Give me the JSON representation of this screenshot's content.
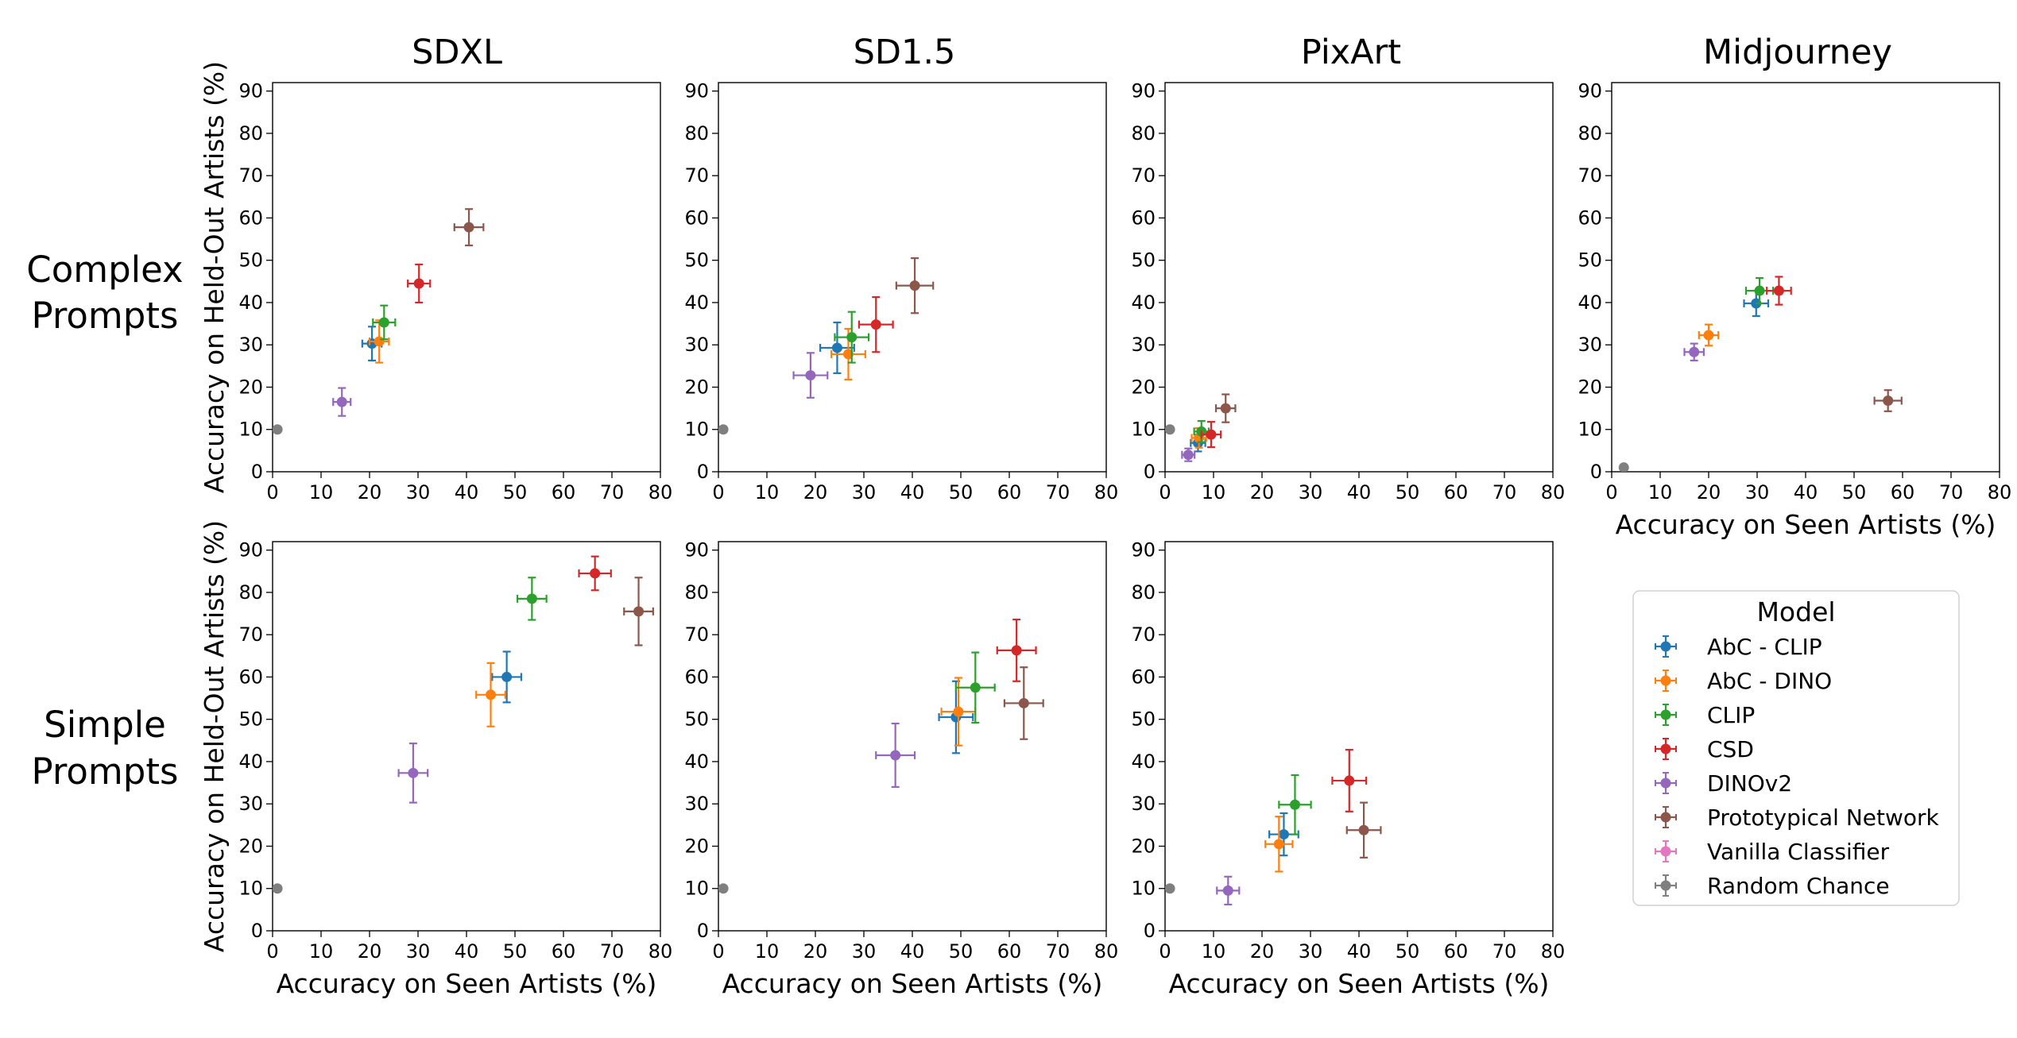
{
  "figure": {
    "column_titles": [
      "SDXL",
      "SD1.5",
      "PixArt",
      "Midjourney"
    ],
    "row_labels": [
      [
        "Complex",
        "Prompts"
      ],
      [
        "Simple",
        "Prompts"
      ]
    ]
  },
  "legend": {
    "title": "Model",
    "placement": "lower-right",
    "entries": [
      {
        "name": "AbC - CLIP",
        "color": "#1f77b4"
      },
      {
        "name": "AbC - DINO",
        "color": "#ff7f0e"
      },
      {
        "name": "CLIP",
        "color": "#2ca02c"
      },
      {
        "name": "CSD",
        "color": "#d62728"
      },
      {
        "name": "DINOv2",
        "color": "#9467bd"
      },
      {
        "name": "Prototypical Network",
        "color": "#8c564b"
      },
      {
        "name": "Vanilla Classifier",
        "color": "#e377c2"
      },
      {
        "name": "Random Chance",
        "color": "#7f7f7f"
      }
    ]
  },
  "chart_data": [
    {
      "type": "scatter",
      "row": 0,
      "col": 0,
      "title": "SDXL",
      "xlabel": "",
      "ylabel": "Accuracy on Held-Out Artists (%)",
      "xlim": [
        0,
        80
      ],
      "ylim": [
        0,
        92
      ],
      "xticks": [
        "0",
        "10",
        "20",
        "30",
        "40",
        "50",
        "60",
        "70",
        "80"
      ],
      "yticks": [
        "0",
        "10",
        "20",
        "30",
        "40",
        "50",
        "60",
        "70",
        "80",
        "90"
      ],
      "series": [
        {
          "name": "AbC - CLIP",
          "x": 20.5,
          "y": 30.3,
          "xerr": 2.0,
          "yerr": 4.0
        },
        {
          "name": "AbC - DINO",
          "x": 22.0,
          "y": 30.8,
          "xerr": 2.0,
          "yerr": 5.0
        },
        {
          "name": "CLIP",
          "x": 23.0,
          "y": 35.3,
          "xerr": 2.3,
          "yerr": 4.0
        },
        {
          "name": "CSD",
          "x": 30.2,
          "y": 44.5,
          "xerr": 2.3,
          "yerr": 4.5
        },
        {
          "name": "DINOv2",
          "x": 14.3,
          "y": 16.5,
          "xerr": 1.8,
          "yerr": 3.3
        },
        {
          "name": "Prototypical Network",
          "x": 40.5,
          "y": 57.8,
          "xerr": 3.0,
          "yerr": 4.3
        },
        {
          "name": "Random Chance",
          "x": 1.0,
          "y": 10.0,
          "xerr": 0,
          "yerr": 0
        }
      ]
    },
    {
      "type": "scatter",
      "row": 0,
      "col": 1,
      "title": "SD1.5",
      "xlabel": "",
      "ylabel": "",
      "xlim": [
        0,
        80
      ],
      "ylim": [
        0,
        92
      ],
      "xticks": [
        "0",
        "10",
        "20",
        "30",
        "40",
        "50",
        "60",
        "70",
        "80"
      ],
      "yticks": [
        "0",
        "10",
        "20",
        "30",
        "40",
        "50",
        "60",
        "70",
        "80",
        "90"
      ],
      "series": [
        {
          "name": "AbC - CLIP",
          "x": 24.5,
          "y": 29.3,
          "xerr": 3.5,
          "yerr": 6.0
        },
        {
          "name": "AbC - DINO",
          "x": 26.8,
          "y": 27.8,
          "xerr": 3.5,
          "yerr": 6.0
        },
        {
          "name": "CLIP",
          "x": 27.5,
          "y": 31.8,
          "xerr": 3.5,
          "yerr": 6.0
        },
        {
          "name": "CSD",
          "x": 32.5,
          "y": 34.8,
          "xerr": 3.5,
          "yerr": 6.5
        },
        {
          "name": "DINOv2",
          "x": 19.0,
          "y": 22.8,
          "xerr": 3.5,
          "yerr": 5.3
        },
        {
          "name": "Prototypical Network",
          "x": 40.5,
          "y": 44.0,
          "xerr": 3.8,
          "yerr": 6.5
        },
        {
          "name": "Random Chance",
          "x": 1.0,
          "y": 10.0,
          "xerr": 0,
          "yerr": 0
        }
      ]
    },
    {
      "type": "scatter",
      "row": 0,
      "col": 2,
      "title": "PixArt",
      "xlabel": "",
      "ylabel": "",
      "xlim": [
        0,
        80
      ],
      "ylim": [
        0,
        92
      ],
      "xticks": [
        "0",
        "10",
        "20",
        "30",
        "40",
        "50",
        "60",
        "70",
        "80"
      ],
      "yticks": [
        "0",
        "10",
        "20",
        "30",
        "40",
        "50",
        "60",
        "70",
        "80",
        "90"
      ],
      "series": [
        {
          "name": "AbC - CLIP",
          "x": 6.8,
          "y": 6.8,
          "xerr": 1.5,
          "yerr": 2.0
        },
        {
          "name": "AbC - DINO",
          "x": 7.0,
          "y": 8.0,
          "xerr": 1.5,
          "yerr": 2.3
        },
        {
          "name": "CLIP",
          "x": 7.5,
          "y": 9.5,
          "xerr": 1.5,
          "yerr": 2.5
        },
        {
          "name": "CSD",
          "x": 9.5,
          "y": 8.8,
          "xerr": 2.0,
          "yerr": 3.0
        },
        {
          "name": "DINOv2",
          "x": 4.8,
          "y": 4.0,
          "xerr": 1.3,
          "yerr": 1.5
        },
        {
          "name": "Prototypical Network",
          "x": 12.5,
          "y": 15.0,
          "xerr": 2.0,
          "yerr": 3.3
        },
        {
          "name": "Random Chance",
          "x": 1.0,
          "y": 10.0,
          "xerr": 0,
          "yerr": 0
        }
      ]
    },
    {
      "type": "scatter",
      "row": 0,
      "col": 3,
      "title": "Midjourney",
      "xlabel": "Accuracy on Seen Artists (%)",
      "ylabel": "",
      "xlim": [
        0,
        80
      ],
      "ylim": [
        0,
        92
      ],
      "xticks": [
        "0",
        "10",
        "20",
        "30",
        "40",
        "50",
        "60",
        "70",
        "80"
      ],
      "yticks": [
        "0",
        "10",
        "20",
        "30",
        "40",
        "50",
        "60",
        "70",
        "80",
        "90"
      ],
      "series": [
        {
          "name": "AbC - CLIP",
          "x": 29.8,
          "y": 39.8,
          "xerr": 2.5,
          "yerr": 3.0
        },
        {
          "name": "AbC - DINO",
          "x": 20.0,
          "y": 32.3,
          "xerr": 2.0,
          "yerr": 2.5
        },
        {
          "name": "CLIP",
          "x": 30.5,
          "y": 42.8,
          "xerr": 2.8,
          "yerr": 3.0
        },
        {
          "name": "CSD",
          "x": 34.5,
          "y": 42.8,
          "xerr": 2.5,
          "yerr": 3.3
        },
        {
          "name": "DINOv2",
          "x": 17.0,
          "y": 28.3,
          "xerr": 2.0,
          "yerr": 2.0
        },
        {
          "name": "Prototypical Network",
          "x": 57.0,
          "y": 16.8,
          "xerr": 2.8,
          "yerr": 2.5
        },
        {
          "name": "Random Chance",
          "x": 2.5,
          "y": 1.0,
          "xerr": 0,
          "yerr": 0
        }
      ]
    },
    {
      "type": "scatter",
      "row": 1,
      "col": 0,
      "title": "",
      "xlabel": "Accuracy on Seen Artists (%)",
      "ylabel": "Accuracy on Held-Out Artists (%)",
      "xlim": [
        0,
        80
      ],
      "ylim": [
        0,
        92
      ],
      "xticks": [
        "0",
        "10",
        "20",
        "30",
        "40",
        "50",
        "60",
        "70",
        "80"
      ],
      "yticks": [
        "0",
        "10",
        "20",
        "30",
        "40",
        "50",
        "60",
        "70",
        "80",
        "90"
      ],
      "series": [
        {
          "name": "AbC - CLIP",
          "x": 48.3,
          "y": 60.0,
          "xerr": 3.0,
          "yerr": 6.0
        },
        {
          "name": "AbC - DINO",
          "x": 45.0,
          "y": 55.8,
          "xerr": 3.0,
          "yerr": 7.5
        },
        {
          "name": "CLIP",
          "x": 53.5,
          "y": 78.5,
          "xerr": 3.0,
          "yerr": 5.0
        },
        {
          "name": "CSD",
          "x": 66.5,
          "y": 84.5,
          "xerr": 3.3,
          "yerr": 4.0
        },
        {
          "name": "DINOv2",
          "x": 29.0,
          "y": 37.3,
          "xerr": 3.0,
          "yerr": 7.0
        },
        {
          "name": "Prototypical Network",
          "x": 75.5,
          "y": 75.5,
          "xerr": 3.0,
          "yerr": 8.0
        },
        {
          "name": "Random Chance",
          "x": 1.0,
          "y": 10.0,
          "xerr": 0,
          "yerr": 0
        }
      ]
    },
    {
      "type": "scatter",
      "row": 1,
      "col": 1,
      "title": "",
      "xlabel": "Accuracy on Seen Artists (%)",
      "ylabel": "",
      "xlim": [
        0,
        80
      ],
      "ylim": [
        0,
        92
      ],
      "xticks": [
        "0",
        "10",
        "20",
        "30",
        "40",
        "50",
        "60",
        "70",
        "80"
      ],
      "yticks": [
        "0",
        "10",
        "20",
        "30",
        "40",
        "50",
        "60",
        "70",
        "80",
        "90"
      ],
      "series": [
        {
          "name": "AbC - CLIP",
          "x": 49.0,
          "y": 50.5,
          "xerr": 3.5,
          "yerr": 8.5
        },
        {
          "name": "AbC - DINO",
          "x": 49.5,
          "y": 51.8,
          "xerr": 3.5,
          "yerr": 8.0
        },
        {
          "name": "CLIP",
          "x": 53.0,
          "y": 57.5,
          "xerr": 4.0,
          "yerr": 8.3
        },
        {
          "name": "CSD",
          "x": 61.5,
          "y": 66.3,
          "xerr": 4.0,
          "yerr": 7.3
        },
        {
          "name": "DINOv2",
          "x": 36.5,
          "y": 41.5,
          "xerr": 4.0,
          "yerr": 7.5
        },
        {
          "name": "Prototypical Network",
          "x": 63.0,
          "y": 53.8,
          "xerr": 4.0,
          "yerr": 8.5
        },
        {
          "name": "Random Chance",
          "x": 1.0,
          "y": 10.0,
          "xerr": 0,
          "yerr": 0
        }
      ]
    },
    {
      "type": "scatter",
      "row": 1,
      "col": 2,
      "title": "",
      "xlabel": "Accuracy on Seen Artists (%)",
      "ylabel": "",
      "xlim": [
        0,
        80
      ],
      "ylim": [
        0,
        92
      ],
      "xticks": [
        "0",
        "10",
        "20",
        "30",
        "40",
        "50",
        "60",
        "70",
        "80"
      ],
      "yticks": [
        "0",
        "10",
        "20",
        "30",
        "40",
        "50",
        "60",
        "70",
        "80",
        "90"
      ],
      "series": [
        {
          "name": "AbC - CLIP",
          "x": 24.5,
          "y": 22.8,
          "xerr": 3.0,
          "yerr": 5.0
        },
        {
          "name": "AbC - DINO",
          "x": 23.5,
          "y": 20.5,
          "xerr": 2.8,
          "yerr": 6.5
        },
        {
          "name": "CLIP",
          "x": 26.8,
          "y": 29.8,
          "xerr": 3.3,
          "yerr": 7.0
        },
        {
          "name": "CSD",
          "x": 38.0,
          "y": 35.5,
          "xerr": 3.5,
          "yerr": 7.3
        },
        {
          "name": "DINOv2",
          "x": 13.0,
          "y": 9.5,
          "xerr": 2.3,
          "yerr": 3.3
        },
        {
          "name": "Prototypical Network",
          "x": 41.0,
          "y": 23.8,
          "xerr": 3.5,
          "yerr": 6.5
        },
        {
          "name": "Random Chance",
          "x": 1.0,
          "y": 10.0,
          "xerr": 0,
          "yerr": 0
        }
      ]
    }
  ]
}
